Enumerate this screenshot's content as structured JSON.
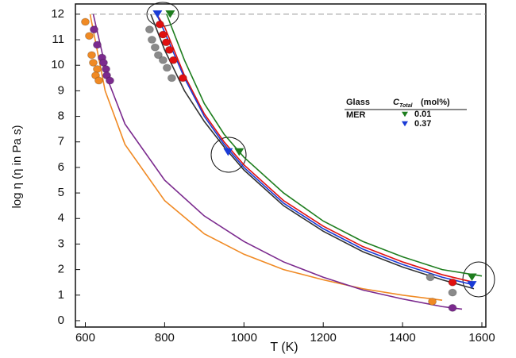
{
  "chart_data": {
    "type": "line",
    "x_label": "T (K)",
    "y_label": "log η (η in Pa s)",
    "xlim": [
      575,
      1610
    ],
    "ylim": [
      -0.25,
      12.4
    ],
    "xticks": [
      600,
      800,
      1000,
      1200,
      1400,
      1600
    ],
    "yticks": [
      0,
      1,
      2,
      3,
      4,
      5,
      6,
      7,
      8,
      9,
      10,
      11,
      12
    ],
    "hline": 12,
    "legend_header": [
      "Glass",
      "C",
      "Total",
      "(mol%)"
    ],
    "legend_glass": "MER",
    "series": [
      {
        "style": "line",
        "color": "#f08a24",
        "x": [
          612,
          650,
          700,
          800,
          900,
          1000,
          1100,
          1200,
          1300,
          1400,
          1500
        ],
        "values": [
          12,
          9.0,
          6.9,
          4.7,
          3.4,
          2.6,
          2.0,
          1.6,
          1.25,
          1.0,
          0.8
        ]
      },
      {
        "style": "line",
        "color": "#7b2a8e",
        "x": [
          620,
          660,
          700,
          800,
          900,
          1000,
          1100,
          1200,
          1300,
          1400,
          1500,
          1550
        ],
        "values": [
          12,
          9.3,
          7.7,
          5.5,
          4.1,
          3.1,
          2.3,
          1.7,
          1.2,
          0.85,
          0.55,
          0.45
        ]
      },
      {
        "style": "line",
        "color": "#333333",
        "x": [
          765,
          800,
          850,
          900,
          950,
          1000,
          1100,
          1200,
          1300,
          1400,
          1500,
          1580
        ],
        "values": [
          12,
          10.6,
          9.0,
          7.8,
          6.8,
          5.9,
          4.5,
          3.5,
          2.7,
          2.1,
          1.6,
          1.25
        ]
      },
      {
        "style": "line",
        "color": "#e01010",
        "x": [
          780,
          800,
          850,
          900,
          950,
          1000,
          1100,
          1200,
          1300,
          1400,
          1500,
          1580
        ],
        "values": [
          12,
          11.5,
          9.6,
          8.1,
          7.0,
          6.1,
          4.7,
          3.7,
          2.9,
          2.3,
          1.8,
          1.5
        ]
      },
      {
        "style": "line",
        "color": "#1a3bd6",
        "x": [
          780,
          800,
          850,
          900,
          950,
          1000,
          1100,
          1200,
          1300,
          1400,
          1500,
          1580
        ],
        "values": [
          12,
          11.3,
          9.5,
          8.0,
          6.9,
          6.0,
          4.6,
          3.6,
          2.8,
          2.2,
          1.7,
          1.4
        ]
      },
      {
        "style": "line",
        "color": "#1e7d1e",
        "x": [
          805,
          850,
          900,
          950,
          1000,
          1100,
          1200,
          1300,
          1400,
          1500,
          1600
        ],
        "values": [
          12,
          10.2,
          8.5,
          7.3,
          6.4,
          5.0,
          3.9,
          3.1,
          2.5,
          2.0,
          1.75
        ]
      },
      {
        "style": "dots",
        "color": "#f08a24",
        "x": [
          600,
          610,
          616,
          620,
          630,
          626,
          634,
          1475
        ],
        "values": [
          11.7,
          11.15,
          10.4,
          10.1,
          9.85,
          9.6,
          9.4,
          0.75
        ]
      },
      {
        "style": "dots",
        "color": "#7b2a8e",
        "x": [
          622,
          630,
          642,
          646,
          652,
          654,
          662,
          1526
        ],
        "values": [
          11.4,
          10.8,
          10.3,
          10.1,
          9.85,
          9.6,
          9.4,
          0.5
        ]
      },
      {
        "style": "dots",
        "color": "#8a8a8a",
        "x": [
          762,
          768,
          776,
          784,
          796,
          806,
          818,
          1470,
          1526
        ],
        "values": [
          11.4,
          11.0,
          10.7,
          10.4,
          10.2,
          9.9,
          9.5,
          1.7,
          1.1
        ]
      },
      {
        "style": "dots",
        "color": "#e01010",
        "x": [
          788,
          796,
          804,
          812,
          822,
          846,
          1526
        ],
        "values": [
          11.6,
          11.2,
          10.9,
          10.6,
          10.2,
          9.5,
          1.5
        ]
      },
      {
        "style": "triangles",
        "name": "0.01",
        "color": "#1e7d1e",
        "x": [
          814,
          988,
          1575
        ],
        "values": [
          12,
          6.6,
          1.7
        ]
      },
      {
        "style": "triangles",
        "name": "0.37",
        "color": "#1a3bd6",
        "x": [
          782,
          960,
          1575
        ],
        "values": [
          12,
          6.6,
          1.4
        ]
      }
    ]
  }
}
